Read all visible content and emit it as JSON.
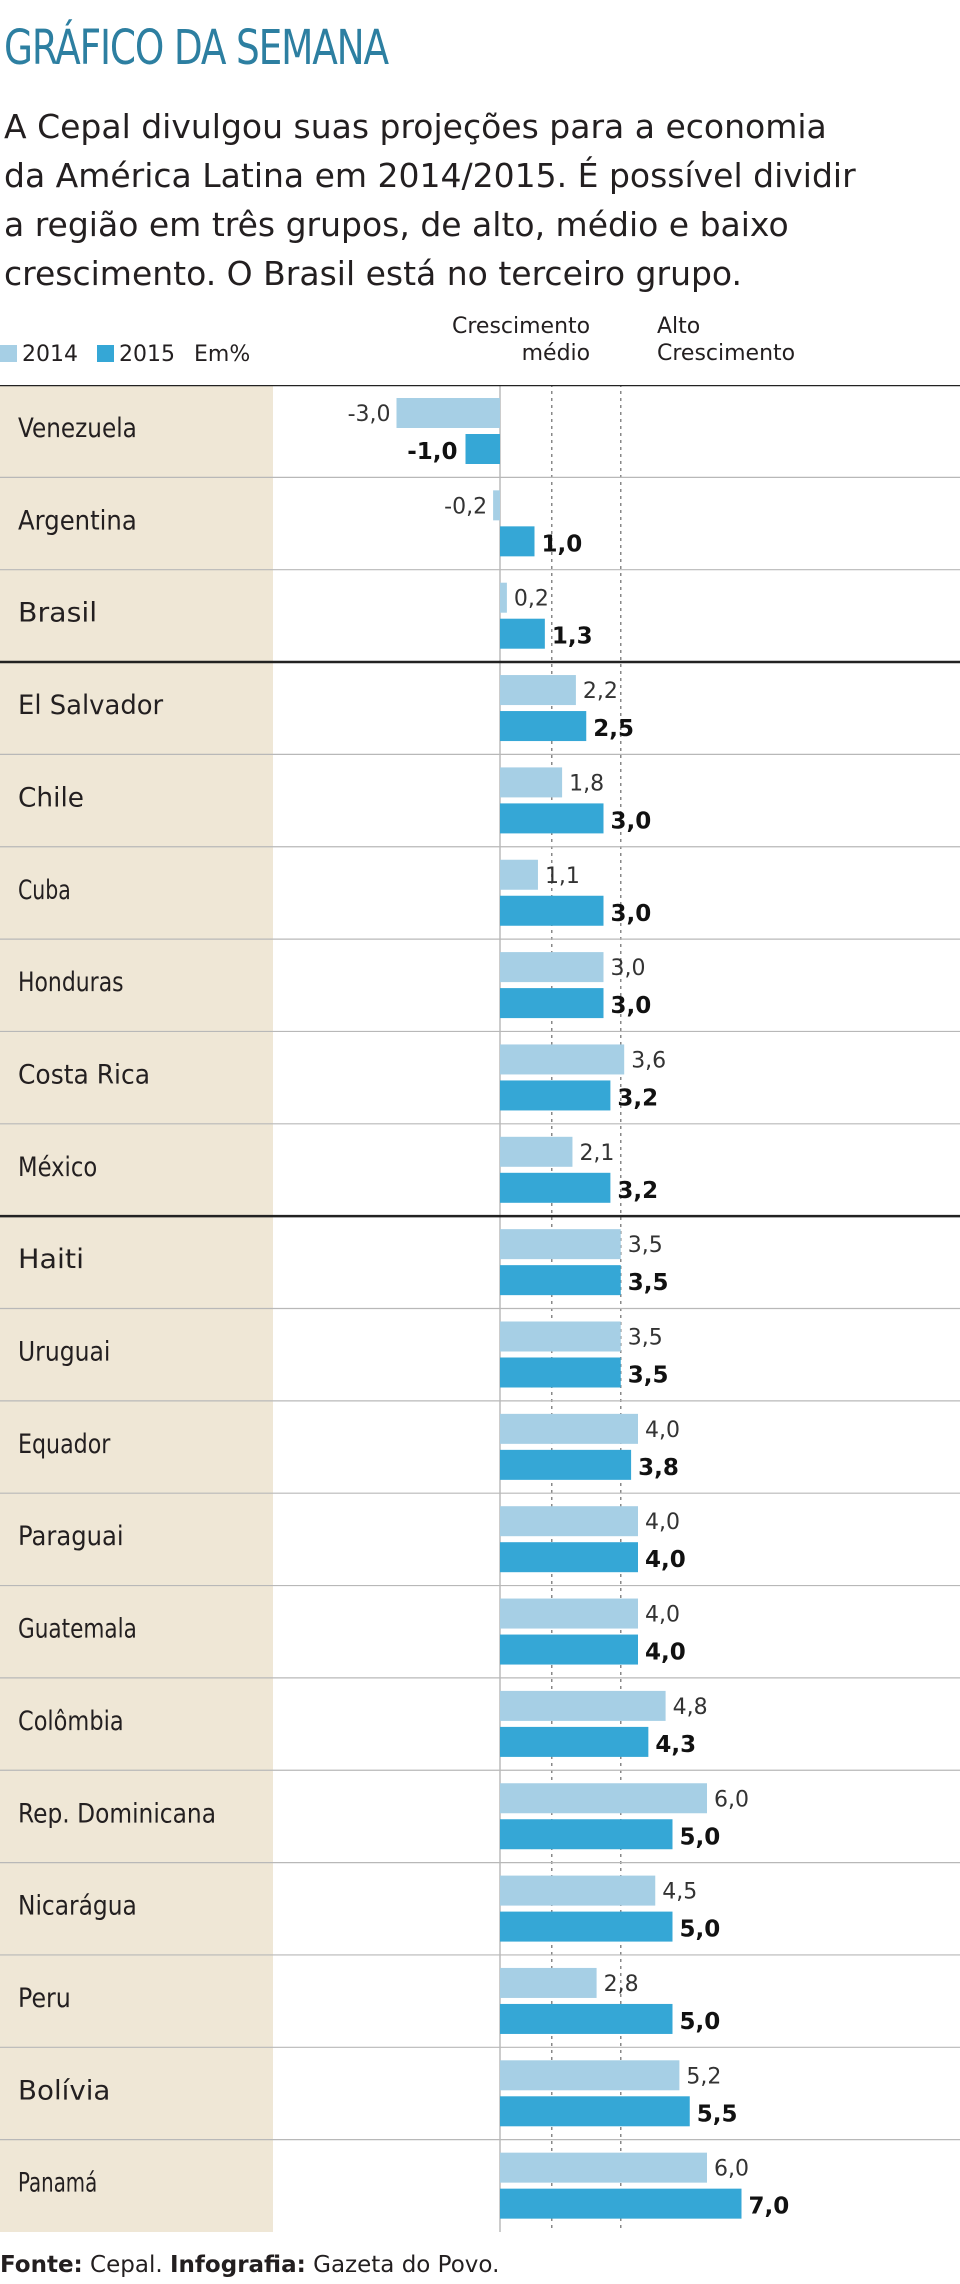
{
  "title": "GRÁFICO DA SEMANA",
  "intro_lines": [
    "A Cepal divulgou suas projeções para a economia",
    "da América Latina em 2014/2015. É possível dividir",
    "a região em três grupos, de alto, médio e baixo",
    "crescimento. O Brasil está no terceiro grupo."
  ],
  "legend": {
    "series_2014": "2014",
    "series_2015": "2015",
    "unit": "Em%"
  },
  "zones": {
    "medium_line1": "Crescimento",
    "medium_line2": "médio",
    "high_line1": "Alto",
    "high_line2": "Crescimento"
  },
  "colors": {
    "series_2014": "#a6cfe5",
    "series_2015": "#35a7d6",
    "label_panel": "#efe7d6",
    "title": "#2d7fa1",
    "grid_line": "#222222",
    "dotted_line": "#888888"
  },
  "chart_data": {
    "type": "bar",
    "orientation": "horizontal",
    "unit": "Em%",
    "categories": [
      "Venezuela",
      "Argentina",
      "Brasil",
      "El Salvador",
      "Chile",
      "Cuba",
      "Honduras",
      "Costa Rica",
      "México",
      "Haiti",
      "Uruguai",
      "Equador",
      "Paraguai",
      "Guatemala",
      "Colômbia",
      "Rep. Dominicana",
      "Nicarágua",
      "Peru",
      "Bolívia",
      "Panamá"
    ],
    "series": [
      {
        "name": "2014",
        "values": [
          -3.0,
          -0.2,
          0.2,
          2.2,
          1.8,
          1.1,
          3.0,
          3.6,
          2.1,
          3.5,
          3.5,
          4.0,
          4.0,
          4.0,
          4.8,
          6.0,
          4.5,
          2.8,
          5.2,
          6.0
        ],
        "labels": [
          "-3,0",
          "-0,2",
          "0,2",
          "2,2",
          "1,8",
          "1,1",
          "3,0",
          "3,6",
          "2,1",
          "3,5",
          "3,5",
          "4,0",
          "4,0",
          "4,0",
          "4,8",
          "6,0",
          "4,5",
          "2,8",
          "5,2",
          "6,0"
        ]
      },
      {
        "name": "2015",
        "values": [
          -1.0,
          1.0,
          1.3,
          2.5,
          3.0,
          3.0,
          3.0,
          3.2,
          3.2,
          3.5,
          3.5,
          3.8,
          4.0,
          4.0,
          4.3,
          5.0,
          5.0,
          5.0,
          5.5,
          7.0
        ],
        "labels": [
          "-1,0",
          "1,0",
          "1,3",
          "2,5",
          "3,0",
          "3,0",
          "3,0",
          "3,2",
          "3,2",
          "3,5",
          "3,5",
          "3,8",
          "4,0",
          "4,0",
          "4,3",
          "5,0",
          "5,0",
          "5,0",
          "5,5",
          "7,0"
        ]
      }
    ],
    "reference_lines": [
      1.5,
      3.5
    ],
    "group_separators_after": [
      "Brasil",
      "México"
    ],
    "grid": false
  },
  "source": {
    "fonte_label": "Fonte:",
    "fonte_value": " Cepal. ",
    "infografia_label": "Infografia:",
    "infografia_value": " Gazeta do Povo."
  }
}
